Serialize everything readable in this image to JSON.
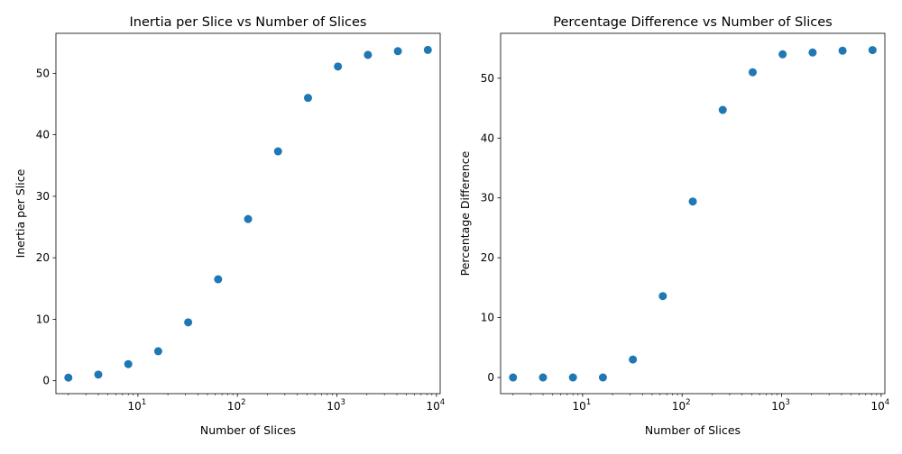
{
  "chart_data": [
    {
      "type": "scatter",
      "title": "Inertia per Slice vs Number of Slices",
      "xlabel": "Number of Slices",
      "ylabel": "Inertia per Slice",
      "xscale": "log",
      "xlim": [
        1.5,
        10900
      ],
      "ylim": [
        -2.1,
        56.5
      ],
      "xticks": [
        {
          "value": 10,
          "base": "10",
          "exp": "1"
        },
        {
          "value": 100,
          "base": "10",
          "exp": "2"
        },
        {
          "value": 1000,
          "base": "10",
          "exp": "3"
        },
        {
          "value": 10000,
          "base": "10",
          "exp": "4"
        }
      ],
      "yticks": [
        0,
        10,
        20,
        30,
        40,
        50
      ],
      "color": "#1f77b4",
      "grid": false,
      "series": [
        {
          "x": [
            2,
            4,
            8,
            16,
            32,
            64,
            128,
            256,
            512,
            1024,
            2048,
            4096,
            8192
          ],
          "y": [
            0.5,
            1.0,
            2.7,
            4.8,
            9.5,
            16.5,
            26.3,
            37.3,
            46.0,
            51.1,
            53.0,
            53.6,
            53.8
          ]
        }
      ]
    },
    {
      "type": "scatter",
      "title": "Percentage Difference vs Number of Slices",
      "xlabel": "Number of Slices",
      "ylabel": "Percentage Difference",
      "xscale": "log",
      "xlim": [
        1.5,
        10900
      ],
      "ylim": [
        -2.7,
        57.5
      ],
      "xticks": [
        {
          "value": 10,
          "base": "10",
          "exp": "1"
        },
        {
          "value": 100,
          "base": "10",
          "exp": "2"
        },
        {
          "value": 1000,
          "base": "10",
          "exp": "3"
        },
        {
          "value": 10000,
          "base": "10",
          "exp": "4"
        }
      ],
      "yticks": [
        0,
        10,
        20,
        30,
        40,
        50
      ],
      "color": "#1f77b4",
      "grid": false,
      "series": [
        {
          "x": [
            2,
            4,
            8,
            16,
            32,
            64,
            128,
            256,
            512,
            1024,
            2048,
            4096,
            8192
          ],
          "y": [
            0,
            0,
            0,
            0,
            3.0,
            13.6,
            29.4,
            44.7,
            51.0,
            54.0,
            54.3,
            54.6,
            54.7
          ]
        }
      ]
    }
  ]
}
